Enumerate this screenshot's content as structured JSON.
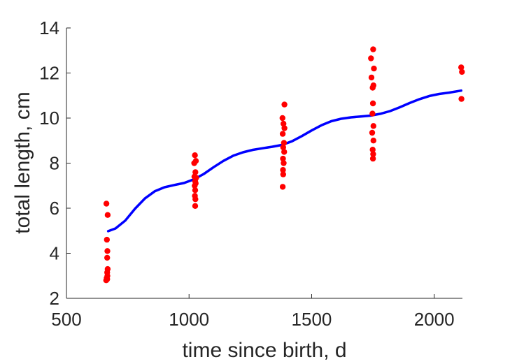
{
  "chart_data": {
    "type": "scatter",
    "xlabel": "time since birth, d",
    "ylabel": "total length, cm",
    "xlim": [
      500,
      2115
    ],
    "ylim": [
      2,
      14
    ],
    "xticks": [
      500,
      1000,
      1500,
      2000
    ],
    "yticks": [
      2,
      4,
      6,
      8,
      10,
      12,
      14
    ],
    "grid": false,
    "colors": {
      "points": "#ff0000",
      "fit": "#0000ff",
      "axis": "#262626"
    },
    "series": [
      {
        "type": "scatter",
        "points": [
          [
            663,
            6.2
          ],
          [
            668,
            5.7
          ],
          [
            665,
            4.6
          ],
          [
            667,
            4.1
          ],
          [
            666,
            3.8
          ],
          [
            668,
            3.3
          ],
          [
            666,
            3.15
          ],
          [
            667,
            3.0
          ],
          [
            664,
            2.9
          ],
          [
            666,
            2.85
          ],
          [
            662,
            2.8
          ],
          [
            1024,
            8.35
          ],
          [
            1028,
            8.1
          ],
          [
            1021,
            8.0
          ],
          [
            1026,
            7.6
          ],
          [
            1022,
            7.4
          ],
          [
            1029,
            7.35
          ],
          [
            1025,
            7.2
          ],
          [
            1027,
            7.1
          ],
          [
            1023,
            7.0
          ],
          [
            1025,
            6.8
          ],
          [
            1024,
            6.55
          ],
          [
            1026,
            6.4
          ],
          [
            1025,
            6.1
          ],
          [
            1389,
            10.6
          ],
          [
            1381,
            10.0
          ],
          [
            1385,
            9.75
          ],
          [
            1389,
            9.55
          ],
          [
            1382,
            9.3
          ],
          [
            1387,
            8.9
          ],
          [
            1384,
            8.7
          ],
          [
            1388,
            8.5
          ],
          [
            1383,
            8.2
          ],
          [
            1386,
            8.0
          ],
          [
            1383,
            7.7
          ],
          [
            1384,
            7.5
          ],
          [
            1382,
            6.95
          ],
          [
            1751,
            13.05
          ],
          [
            1742,
            12.65
          ],
          [
            1754,
            12.2
          ],
          [
            1744,
            11.8
          ],
          [
            1752,
            11.45
          ],
          [
            1749,
            11.35
          ],
          [
            1750,
            10.65
          ],
          [
            1748,
            10.2
          ],
          [
            1752,
            9.65
          ],
          [
            1747,
            9.35
          ],
          [
            1752,
            9.0
          ],
          [
            1749,
            8.6
          ],
          [
            1751,
            8.4
          ],
          [
            1750,
            8.2
          ],
          [
            2110,
            12.25
          ],
          [
            2113,
            12.05
          ],
          [
            2111,
            10.85
          ]
        ]
      },
      {
        "type": "line",
        "points": [
          [
            670,
            4.98
          ],
          [
            700,
            5.1
          ],
          [
            740,
            5.45
          ],
          [
            780,
            5.98
          ],
          [
            820,
            6.43
          ],
          [
            860,
            6.75
          ],
          [
            900,
            6.93
          ],
          [
            940,
            7.03
          ],
          [
            980,
            7.12
          ],
          [
            1020,
            7.28
          ],
          [
            1060,
            7.52
          ],
          [
            1100,
            7.82
          ],
          [
            1140,
            8.1
          ],
          [
            1180,
            8.33
          ],
          [
            1220,
            8.48
          ],
          [
            1260,
            8.59
          ],
          [
            1300,
            8.66
          ],
          [
            1340,
            8.73
          ],
          [
            1380,
            8.81
          ],
          [
            1420,
            8.97
          ],
          [
            1460,
            9.2
          ],
          [
            1500,
            9.45
          ],
          [
            1540,
            9.68
          ],
          [
            1580,
            9.86
          ],
          [
            1620,
            9.97
          ],
          [
            1660,
            10.03
          ],
          [
            1700,
            10.07
          ],
          [
            1740,
            10.11
          ],
          [
            1780,
            10.19
          ],
          [
            1820,
            10.31
          ],
          [
            1860,
            10.48
          ],
          [
            1900,
            10.67
          ],
          [
            1940,
            10.84
          ],
          [
            1980,
            10.98
          ],
          [
            2020,
            11.07
          ],
          [
            2060,
            11.13
          ],
          [
            2110,
            11.22
          ]
        ]
      }
    ]
  }
}
